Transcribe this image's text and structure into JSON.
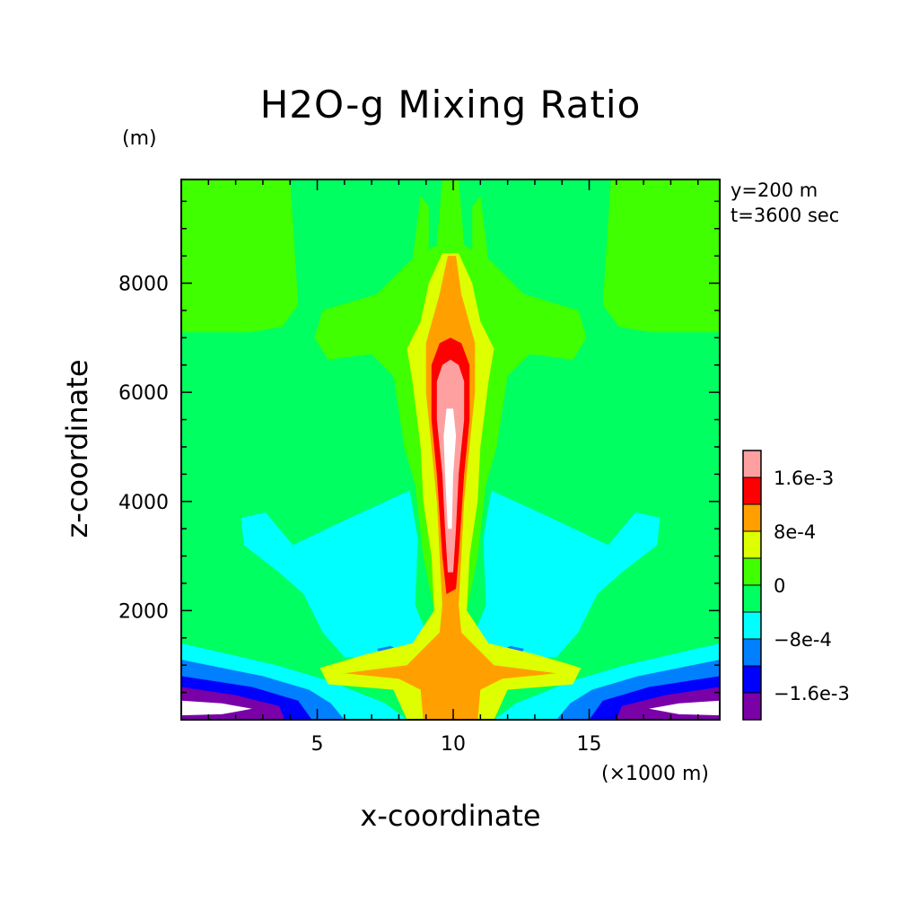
{
  "chart_data": {
    "type": "heatmap",
    "title": "H2O-g Mixing Ratio",
    "xlabel": "x-coordinate",
    "ylabel": "z-coordinate",
    "x_unit_label": "(×1000 m)",
    "y_unit_label": "(m)",
    "annotations": [
      "y=200 m",
      "t=3600 sec"
    ],
    "xlim": [
      0,
      19.8
    ],
    "ylim": [
      0,
      9900
    ],
    "x_ticks": [
      5,
      10,
      15
    ],
    "y_ticks": [
      2000,
      4000,
      6000,
      8000
    ],
    "colorbar": {
      "levels": [
        -0.002,
        -0.0016,
        -0.0012,
        -0.0008,
        -0.0004,
        0,
        0.0004,
        0.0008,
        0.0012,
        0.0016,
        0.002
      ],
      "labels": [
        {
          "value": 0.0016,
          "text": "1.6e-3"
        },
        {
          "value": 0.0008,
          "text": "8e-4"
        },
        {
          "value": 0,
          "text": "0"
        },
        {
          "value": -0.0008,
          "text": "-8e-4"
        },
        {
          "value": -0.0016,
          "text": "-1.6e-3"
        }
      ],
      "colors": [
        "#7a00a8",
        "#0000ff",
        "#0080ff",
        "#00ffff",
        "#00ff60",
        "#40ff00",
        "#ddff00",
        "#ffa000",
        "#ff0000",
        "#ffa0a0"
      ]
    },
    "background_value_color": "#00ff60",
    "regions": [
      {
        "name": "upper-left-region",
        "color": "#40ff00",
        "points": [
          [
            0,
            9900
          ],
          [
            4,
            9900
          ],
          [
            4.3,
            7600
          ],
          [
            3.7,
            7200
          ],
          [
            2.5,
            7100
          ],
          [
            0,
            7100
          ]
        ]
      },
      {
        "name": "upper-right-region",
        "color": "#40ff00",
        "points": [
          [
            19.8,
            9900
          ],
          [
            15.8,
            9900
          ],
          [
            15.5,
            7600
          ],
          [
            16.1,
            7200
          ],
          [
            17.3,
            7100
          ],
          [
            19.8,
            7100
          ]
        ]
      },
      {
        "name": "upper-center-tongue",
        "color": "#40ff00",
        "points": [
          [
            9.9,
            9900
          ],
          [
            9.6,
            9900
          ],
          [
            9.4,
            8700
          ],
          [
            8.4,
            8400
          ],
          [
            7.2,
            7800
          ],
          [
            5.2,
            7500
          ],
          [
            4.9,
            7000
          ],
          [
            5.4,
            6600
          ],
          [
            7.0,
            6700
          ],
          [
            7.8,
            6300
          ],
          [
            8.2,
            5000
          ],
          [
            8.6,
            4300
          ],
          [
            8.9,
            3000
          ],
          [
            9.3,
            2000
          ],
          [
            10.5,
            2000
          ],
          [
            10.9,
            3000
          ],
          [
            11.2,
            4300
          ],
          [
            11.6,
            5000
          ],
          [
            12.0,
            6300
          ],
          [
            12.8,
            6700
          ],
          [
            14.4,
            6600
          ],
          [
            14.9,
            7000
          ],
          [
            14.6,
            7500
          ],
          [
            12.6,
            7800
          ],
          [
            11.4,
            8400
          ],
          [
            10.4,
            8700
          ],
          [
            10.2,
            9900
          ]
        ]
      },
      {
        "name": "upper-center-spike-left",
        "color": "#40ff00",
        "points": [
          [
            8.5,
            8400
          ],
          [
            8.8,
            9600
          ],
          [
            9.1,
            9400
          ],
          [
            9.1,
            8300
          ]
        ]
      },
      {
        "name": "upper-center-spike-right",
        "color": "#40ff00",
        "points": [
          [
            10.7,
            8300
          ],
          [
            10.7,
            9400
          ],
          [
            11.0,
            9600
          ],
          [
            11.3,
            8400
          ]
        ]
      },
      {
        "name": "cyan-left-lobe",
        "color": "#00ffff",
        "points": [
          [
            2.2,
            3700
          ],
          [
            3.1,
            3800
          ],
          [
            4.1,
            3200
          ],
          [
            6.2,
            3700
          ],
          [
            8.4,
            4200
          ],
          [
            8.7,
            3300
          ],
          [
            8.6,
            2100
          ],
          [
            9.0,
            1600
          ],
          [
            8.5,
            1100
          ],
          [
            6.0,
            1150
          ],
          [
            5.2,
            1600
          ],
          [
            4.5,
            2300
          ],
          [
            3.6,
            2700
          ],
          [
            2.3,
            3200
          ]
        ]
      },
      {
        "name": "cyan-right-lobe",
        "color": "#00ffff",
        "points": [
          [
            17.6,
            3700
          ],
          [
            16.7,
            3800
          ],
          [
            15.7,
            3200
          ],
          [
            13.6,
            3700
          ],
          [
            11.4,
            4200
          ],
          [
            11.1,
            3300
          ],
          [
            11.2,
            2100
          ],
          [
            10.8,
            1600
          ],
          [
            11.3,
            1100
          ],
          [
            13.8,
            1150
          ],
          [
            14.6,
            1600
          ],
          [
            15.3,
            2300
          ],
          [
            16.2,
            2700
          ],
          [
            17.5,
            3200
          ]
        ]
      },
      {
        "name": "bottom-cyan-band",
        "color": "#00ffff",
        "points": [
          [
            0,
            1400
          ],
          [
            3.5,
            1000
          ],
          [
            5.5,
            700
          ],
          [
            6.5,
            500
          ],
          [
            7.5,
            300
          ],
          [
            8.3,
            0
          ],
          [
            11.5,
            0
          ],
          [
            12.3,
            300
          ],
          [
            13.3,
            500
          ],
          [
            14.3,
            700
          ],
          [
            16.3,
            1000
          ],
          [
            19.8,
            1400
          ],
          [
            19.8,
            0
          ],
          [
            0,
            0
          ]
        ]
      },
      {
        "name": "bottom-light-blue-band",
        "color": "#0080ff",
        "points": [
          [
            0,
            1100
          ],
          [
            3.0,
            800
          ],
          [
            4.7,
            550
          ],
          [
            5.5,
            300
          ],
          [
            6.0,
            0
          ],
          [
            13.8,
            0
          ],
          [
            14.3,
            300
          ],
          [
            15.1,
            550
          ],
          [
            16.8,
            800
          ],
          [
            19.8,
            1100
          ],
          [
            19.8,
            0
          ],
          [
            0,
            0
          ]
        ]
      },
      {
        "name": "bottom-blue-band",
        "color": "#0000ff",
        "points": [
          [
            0,
            800
          ],
          [
            2.6,
            600
          ],
          [
            4.3,
            350
          ],
          [
            4.8,
            0
          ],
          [
            15.0,
            0
          ],
          [
            15.5,
            350
          ],
          [
            17.2,
            600
          ],
          [
            19.8,
            800
          ],
          [
            19.8,
            0
          ],
          [
            0,
            0
          ]
        ]
      },
      {
        "name": "bottom-left-purple",
        "color": "#7a00a8",
        "points": [
          [
            0,
            600
          ],
          [
            2.0,
            450
          ],
          [
            3.6,
            250
          ],
          [
            3.8,
            0
          ],
          [
            0,
            0
          ]
        ]
      },
      {
        "name": "bottom-right-purple",
        "color": "#7a00a8",
        "points": [
          [
            19.8,
            600
          ],
          [
            17.8,
            450
          ],
          [
            16.2,
            250
          ],
          [
            16.0,
            0
          ],
          [
            19.8,
            0
          ]
        ]
      },
      {
        "name": "bottom-left-white",
        "color": "#ffffff",
        "points": [
          [
            0,
            350
          ],
          [
            1.5,
            300
          ],
          [
            2.6,
            200
          ],
          [
            1.5,
            100
          ],
          [
            0,
            80
          ]
        ]
      },
      {
        "name": "bottom-right-white",
        "color": "#ffffff",
        "points": [
          [
            19.8,
            350
          ],
          [
            18.3,
            300
          ],
          [
            17.2,
            200
          ],
          [
            18.3,
            100
          ],
          [
            19.8,
            80
          ]
        ]
      },
      {
        "name": "small-blue-left",
        "color": "#0080ff",
        "points": [
          [
            7.2,
            1300
          ],
          [
            7.7,
            1350
          ],
          [
            8.1,
            1250
          ],
          [
            7.7,
            1150
          ],
          [
            7.3,
            1200
          ]
        ]
      },
      {
        "name": "small-blue-right",
        "color": "#0080ff",
        "points": [
          [
            12.6,
            1300
          ],
          [
            12.1,
            1350
          ],
          [
            11.7,
            1250
          ],
          [
            12.1,
            1150
          ],
          [
            12.5,
            1200
          ]
        ]
      },
      {
        "name": "yellow-plume",
        "color": "#ddff00",
        "points": [
          [
            9.6,
            8550
          ],
          [
            10.2,
            8550
          ],
          [
            10.7,
            8000
          ],
          [
            11.0,
            7300
          ],
          [
            11.5,
            6800
          ],
          [
            11.3,
            6200
          ],
          [
            11.0,
            5000
          ],
          [
            10.9,
            4000
          ],
          [
            10.6,
            3000
          ],
          [
            10.5,
            2000
          ],
          [
            11.3,
            1400
          ],
          [
            13.0,
            1200
          ],
          [
            14.7,
            950
          ],
          [
            14.4,
            650
          ],
          [
            12.0,
            550
          ],
          [
            11.5,
            0
          ],
          [
            8.3,
            0
          ],
          [
            7.8,
            550
          ],
          [
            5.4,
            650
          ],
          [
            5.1,
            950
          ],
          [
            6.8,
            1200
          ],
          [
            8.5,
            1400
          ],
          [
            9.3,
            2000
          ],
          [
            9.2,
            3000
          ],
          [
            8.9,
            4000
          ],
          [
            8.8,
            5000
          ],
          [
            8.5,
            6200
          ],
          [
            8.3,
            6800
          ],
          [
            8.8,
            7300
          ],
          [
            9.1,
            8000
          ]
        ]
      },
      {
        "name": "orange-plume",
        "color": "#ffa000",
        "points": [
          [
            9.8,
            8500
          ],
          [
            10.1,
            8500
          ],
          [
            10.3,
            7800
          ],
          [
            10.8,
            6900
          ],
          [
            10.8,
            6000
          ],
          [
            10.6,
            5000
          ],
          [
            10.4,
            4000
          ],
          [
            10.3,
            3000
          ],
          [
            10.2,
            2100
          ],
          [
            10.3,
            1600
          ],
          [
            11.5,
            1000
          ],
          [
            13.8,
            850
          ],
          [
            11.8,
            750
          ],
          [
            11.0,
            550
          ],
          [
            10.9,
            0
          ],
          [
            8.9,
            0
          ],
          [
            8.8,
            550
          ],
          [
            8.0,
            750
          ],
          [
            6.0,
            850
          ],
          [
            8.3,
            1000
          ],
          [
            9.5,
            1600
          ],
          [
            9.6,
            2100
          ],
          [
            9.5,
            3000
          ],
          [
            9.4,
            4000
          ],
          [
            9.2,
            5000
          ],
          [
            9.0,
            6000
          ],
          [
            9.0,
            6900
          ],
          [
            9.5,
            7800
          ]
        ]
      },
      {
        "name": "red-core",
        "color": "#ff0000",
        "points": [
          [
            9.9,
            7000
          ],
          [
            10.3,
            6900
          ],
          [
            10.6,
            6500
          ],
          [
            10.6,
            5500
          ],
          [
            10.4,
            4500
          ],
          [
            10.2,
            3000
          ],
          [
            10.1,
            2400
          ],
          [
            9.75,
            2300
          ],
          [
            9.6,
            3000
          ],
          [
            9.4,
            4500
          ],
          [
            9.2,
            5500
          ],
          [
            9.2,
            6500
          ],
          [
            9.5,
            6900
          ]
        ]
      },
      {
        "name": "pink-core",
        "color": "#ffa0a0",
        "points": [
          [
            9.9,
            6600
          ],
          [
            10.2,
            6500
          ],
          [
            10.4,
            6200
          ],
          [
            10.4,
            5500
          ],
          [
            10.2,
            4500
          ],
          [
            10.1,
            3500
          ],
          [
            10.0,
            2700
          ],
          [
            9.8,
            2700
          ],
          [
            9.7,
            3500
          ],
          [
            9.6,
            4500
          ],
          [
            9.4,
            5500
          ],
          [
            9.4,
            6200
          ],
          [
            9.6,
            6500
          ]
        ]
      },
      {
        "name": "white-core",
        "color": "#ffffff",
        "points": [
          [
            9.75,
            5700
          ],
          [
            10.0,
            5700
          ],
          [
            10.1,
            5200
          ],
          [
            10.0,
            4500
          ],
          [
            9.95,
            3500
          ],
          [
            9.8,
            3500
          ],
          [
            9.7,
            4500
          ],
          [
            9.65,
            5200
          ]
        ]
      }
    ]
  },
  "text": {
    "title": "H2O-g Mixing Ratio",
    "y_unit": "(m)",
    "x_unit": "(×1000 m)",
    "x_label": "x-coordinate",
    "y_label": "z-coordinate",
    "info_y": "y=200 m",
    "info_t": "t=3600 sec"
  }
}
